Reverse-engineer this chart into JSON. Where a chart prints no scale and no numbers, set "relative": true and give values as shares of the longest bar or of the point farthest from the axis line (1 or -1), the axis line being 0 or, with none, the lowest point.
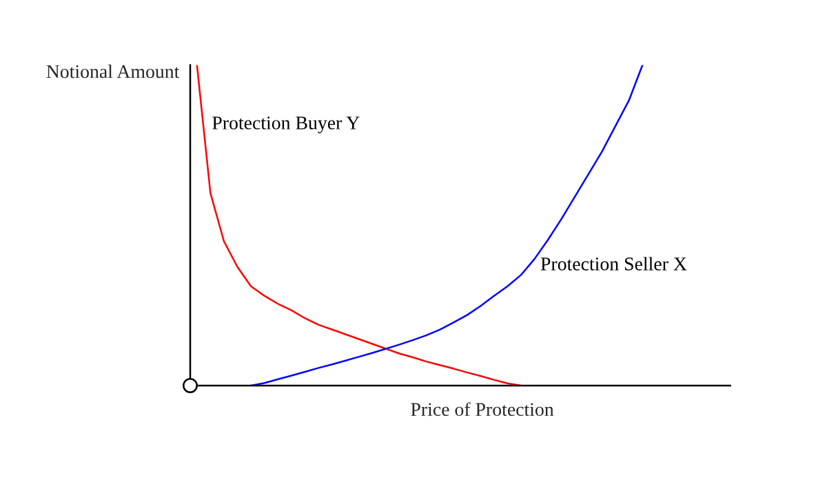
{
  "chart_data": {
    "type": "line",
    "relative": true,
    "xlabel": "Price of Protection",
    "ylabel": "Notional Amount",
    "categories": [
      null,
      null,
      null,
      null,
      null,
      null,
      null,
      null,
      null,
      null,
      null,
      null,
      null,
      null,
      null,
      null,
      null,
      null,
      null,
      null,
      null,
      null,
      null,
      null,
      null,
      null,
      null,
      null,
      null,
      null,
      null,
      null,
      null,
      null,
      null,
      null,
      null,
      null,
      null,
      null
    ],
    "series": [
      {
        "name": "Protection Buyer Y",
        "color": "#ff0000",
        "values": [
          1.0,
          0.6,
          0.45,
          0.37,
          0.31,
          0.28,
          0.255,
          0.235,
          0.21,
          0.19,
          0.175,
          0.16,
          0.145,
          0.13,
          0.115,
          0.1,
          0.088,
          0.075,
          0.064,
          0.053,
          0.041,
          0.03,
          0.018,
          0.007,
          0,
          null,
          null,
          null,
          null,
          null,
          null,
          null,
          null,
          null,
          null,
          null,
          null,
          null,
          null,
          null
        ]
      },
      {
        "name": "Protection Seller X",
        "color": "#0000ff",
        "values": [
          null,
          null,
          null,
          null,
          0,
          0.008,
          0.02,
          0.031,
          0.043,
          0.055,
          0.066,
          0.078,
          0.09,
          0.102,
          0.115,
          0.128,
          0.142,
          0.157,
          0.175,
          0.197,
          0.22,
          0.248,
          0.28,
          0.31,
          0.345,
          0.395,
          0.455,
          0.52,
          0.59,
          0.66,
          0.73,
          0.81,
          0.89,
          1.0,
          null,
          null,
          null,
          null,
          null,
          null
        ]
      }
    ]
  }
}
